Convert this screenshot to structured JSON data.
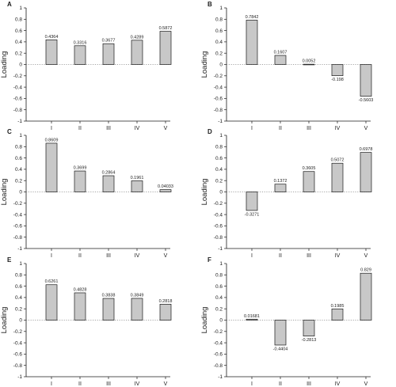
{
  "chart_data": [
    {
      "type": "bar",
      "panel": "A",
      "ylabel": "Loading",
      "ylim": [
        -1,
        1
      ],
      "yticks": [
        -1,
        -0.8,
        -0.6,
        -0.4,
        -0.2,
        0,
        0.2,
        0.4,
        0.6,
        0.8,
        1
      ],
      "categories": [
        "I",
        "II",
        "III",
        "IV",
        "V"
      ],
      "values": [
        0.4364,
        0.3316,
        0.3677,
        0.4289,
        0.5872
      ],
      "data_labels": [
        "0.4364",
        "0.3316",
        "0.3677",
        "0.4289",
        "0.5872"
      ]
    },
    {
      "type": "bar",
      "panel": "B",
      "ylabel": "Loading",
      "ylim": [
        -1,
        1
      ],
      "yticks": [
        -1,
        -0.8,
        -0.6,
        -0.4,
        -0.2,
        0,
        0.2,
        0.4,
        0.6,
        0.8,
        1
      ],
      "categories": [
        "I",
        "II",
        "III",
        "IV",
        "V"
      ],
      "values": [
        0.7842,
        0.1607,
        0.0052,
        -0.198,
        -0.5603
      ],
      "data_labels": [
        "0.7842",
        "0.1607",
        "0.0052",
        "-0.198",
        "-0.5603"
      ]
    },
    {
      "type": "bar",
      "panel": "C",
      "ylabel": "Loading",
      "ylim": [
        -1,
        1
      ],
      "yticks": [
        -1,
        -0.8,
        -0.6,
        -0.4,
        -0.2,
        0,
        0.2,
        0.4,
        0.6,
        0.8,
        1
      ],
      "categories": [
        "I",
        "II",
        "III",
        "IV",
        "V"
      ],
      "values": [
        0.8609,
        0.3699,
        0.2864,
        0.1961,
        0.04033
      ],
      "data_labels": [
        "0.8609",
        "0.3699",
        "0.2864",
        "0.1961",
        "0.04033"
      ]
    },
    {
      "type": "bar",
      "panel": "D",
      "ylabel": "Loading",
      "ylim": [
        -1,
        1
      ],
      "yticks": [
        -1,
        -0.8,
        -0.6,
        -0.4,
        -0.2,
        0,
        0.2,
        0.4,
        0.6,
        0.8,
        1
      ],
      "categories": [
        "I",
        "II",
        "III",
        "IV",
        "V"
      ],
      "values": [
        -0.3271,
        0.1372,
        0.3605,
        0.5072,
        0.6978
      ],
      "data_labels": [
        "-0.3271",
        "0.1372",
        "0.3605",
        "0.5072",
        "0.6978"
      ]
    },
    {
      "type": "bar",
      "panel": "E",
      "ylabel": "Loading",
      "ylim": [
        -1,
        1
      ],
      "yticks": [
        -1,
        -0.8,
        -0.6,
        -0.4,
        -0.2,
        0,
        0.2,
        0.4,
        0.6,
        0.8,
        1
      ],
      "categories": [
        "I",
        "II",
        "III",
        "IV",
        "V"
      ],
      "values": [
        0.6261,
        0.4828,
        0.3838,
        0.3849,
        0.2818
      ],
      "data_labels": [
        "0.6261",
        "0.4828",
        "0.3838",
        "0.3849",
        "0.2818"
      ]
    },
    {
      "type": "bar",
      "panel": "F",
      "ylabel": "Loading",
      "ylim": [
        -1,
        1
      ],
      "yticks": [
        -1,
        -0.8,
        -0.6,
        -0.4,
        -0.2,
        0,
        0.2,
        0.4,
        0.6,
        0.8,
        1
      ],
      "categories": [
        "I",
        "II",
        "III",
        "IV",
        "V"
      ],
      "values": [
        0.01681,
        -0.4404,
        -0.2813,
        0.1985,
        0.829
      ],
      "data_labels": [
        "0.01681",
        "-0.4404",
        "-0.2813",
        "0.1985",
        "0.829"
      ]
    }
  ],
  "style": {
    "bar_fill": "#c8c8c8",
    "bar_stroke": "#1a1a1a",
    "axis_color": "#1a1a1a",
    "zero_line_color": "#888888",
    "zero_line": "dotted",
    "grid": false
  }
}
